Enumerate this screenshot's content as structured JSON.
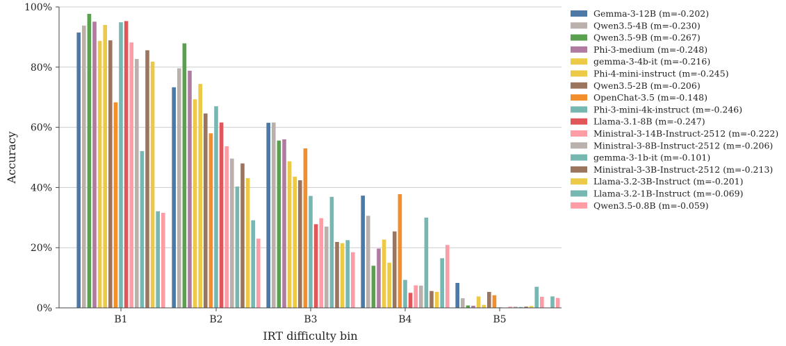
{
  "chart_data": {
    "type": "bar",
    "xlabel": "IRT difficulty bin",
    "ylabel": "Accuracy",
    "categories": [
      "B1",
      "B2",
      "B3",
      "B4",
      "B5"
    ],
    "ylim": [
      0,
      100
    ],
    "yticks": [
      "0%",
      "20%",
      "40%",
      "60%",
      "80%",
      "100%"
    ],
    "grid": "horizontal",
    "legend_position": "right",
    "series": [
      {
        "name": "Gemma-3-12B (m=-0.202)",
        "color": "#4e79a7",
        "values": [
          91.5,
          73.3,
          61.5,
          37.3,
          8.3
        ]
      },
      {
        "name": "Qwen3.5-4B (m=-0.230)",
        "color": "#bab0ac",
        "values": [
          93.8,
          79.6,
          61.6,
          30.6,
          3.2
        ]
      },
      {
        "name": "Qwen3.5-9B (m=-0.267)",
        "color": "#59a14f",
        "values": [
          97.7,
          87.9,
          55.6,
          14.0,
          0.8
        ]
      },
      {
        "name": "Phi-3-medium (m=-0.248)",
        "color": "#b07aa1",
        "values": [
          95.1,
          78.8,
          56.0,
          19.7,
          0.7
        ]
      },
      {
        "name": "gemma-3-4b-it (m=-0.216)",
        "color": "#edc948",
        "values": [
          88.7,
          69.3,
          48.7,
          22.7,
          3.8
        ]
      },
      {
        "name": "Phi-4-mini-instruct (m=-0.245)",
        "color": "#edc948",
        "values": [
          94.0,
          74.4,
          43.6,
          15.0,
          1.0
        ]
      },
      {
        "name": "Qwen3.5-2B (m=-0.206)",
        "color": "#9c755f",
        "values": [
          88.9,
          64.6,
          42.4,
          25.4,
          5.3
        ]
      },
      {
        "name": "OpenChat-3.5 (m=-0.148)",
        "color": "#f28e2b",
        "values": [
          68.3,
          58.0,
          53.0,
          37.8,
          4.2
        ]
      },
      {
        "name": "Phi-3-mini-4k-instruct (m=-0.246)",
        "color": "#76b7b2",
        "values": [
          94.9,
          67.0,
          37.2,
          9.3,
          0.2
        ]
      },
      {
        "name": "Llama-3.1-8B (m=-0.247)",
        "color": "#e15759",
        "values": [
          95.3,
          61.6,
          27.8,
          5.0,
          0.1
        ]
      },
      {
        "name": "Ministral-3-14B-Instruct-2512 (m=-0.222)",
        "color": "#ff9da7",
        "values": [
          88.2,
          53.7,
          29.8,
          7.5,
          0.4
        ]
      },
      {
        "name": "Ministral-3-8B-Instruct-2512 (m=-0.206)",
        "color": "#bab0ac",
        "values": [
          82.7,
          49.6,
          27.0,
          7.4,
          0.4
        ]
      },
      {
        "name": "gemma-3-1b-it (m=-0.101)",
        "color": "#76b7b2",
        "values": [
          52.1,
          40.3,
          36.9,
          30.0,
          0.3
        ]
      },
      {
        "name": "Ministral-3-3B-Instruct-2512 (m=-0.213)",
        "color": "#9c755f",
        "values": [
          85.6,
          48.0,
          21.9,
          5.6,
          0.4
        ]
      },
      {
        "name": "Llama-3.2-3B-Instruct (m=-0.201)",
        "color": "#edc948",
        "values": [
          81.8,
          43.1,
          21.5,
          5.3,
          0.6
        ]
      },
      {
        "name": "Llama-3.2-1B-Instruct (m=-0.069)",
        "color": "#76b7b2",
        "values": [
          32.1,
          29.1,
          22.5,
          16.5,
          7.0
        ]
      },
      {
        "name": "Qwen3.5-0.8B (m=-0.059)",
        "color": "#ff9da7",
        "values": [
          31.6,
          23.0,
          18.5,
          20.9,
          3.7
        ]
      }
    ],
    "b5_extra": [
      {
        "name": "Llama-3.2-1B-Instruct (m=-0.069)",
        "value": 3.8
      },
      {
        "name": "Qwen3.5-0.8B (m=-0.059)",
        "value": 3.3
      }
    ]
  }
}
